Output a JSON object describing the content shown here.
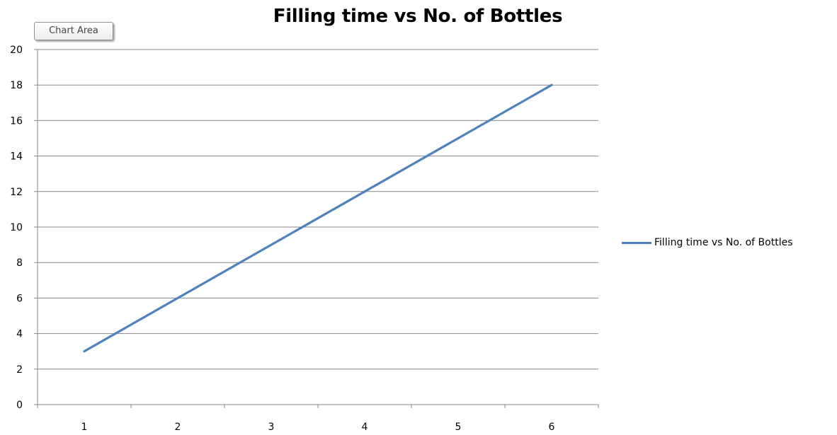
{
  "tooltip": {
    "label": "Chart Area"
  },
  "chart_data": {
    "type": "line",
    "title": "Filling time vs No. of Bottles",
    "xlabel": "",
    "ylabel": "",
    "categories": [
      "1",
      "2",
      "3",
      "4",
      "5",
      "6"
    ],
    "series": [
      {
        "name": "Filling time vs No. of Bottles",
        "values": [
          3,
          6,
          9,
          12,
          15,
          18
        ],
        "color": "#4f81bd"
      }
    ],
    "ylim": [
      0,
      20
    ],
    "y_ticks": [
      0,
      2,
      4,
      6,
      8,
      10,
      12,
      14,
      16,
      18,
      20
    ],
    "grid": "horizontal",
    "legend_position": "right",
    "gridline_color": "#878787",
    "axis_color": "#878787"
  }
}
